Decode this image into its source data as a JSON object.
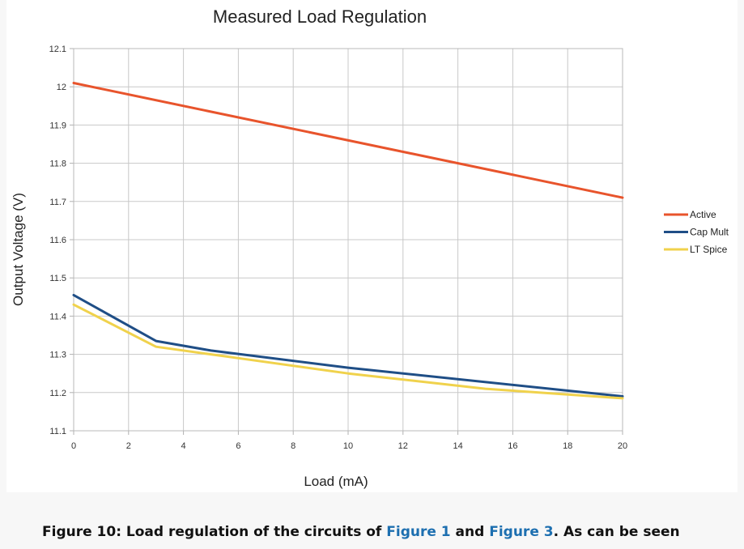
{
  "chart_data": {
    "type": "line",
    "title": "Measured Load Regulation",
    "xlabel": "Load (mA)",
    "ylabel": "Output Voltage (V)",
    "xlim": [
      0,
      20
    ],
    "ylim": [
      11.1,
      12.1
    ],
    "x_ticks": [
      "0",
      "2",
      "4",
      "6",
      "8",
      "10",
      "12",
      "14",
      "16",
      "18",
      "20"
    ],
    "y_ticks": [
      "12.1",
      "12",
      "11.9",
      "11.8",
      "11.7",
      "11.6",
      "11.5",
      "11.4",
      "11.3",
      "11.2",
      "11.1"
    ],
    "grid": true,
    "legend_position": "right",
    "series": [
      {
        "name": "Active",
        "color": "#e8542c",
        "x": [
          0,
          20
        ],
        "y": [
          12.01,
          11.71
        ]
      },
      {
        "name": "Cap Mult",
        "color": "#1f4e86",
        "x": [
          0,
          3,
          5,
          10,
          20
        ],
        "y": [
          11.455,
          11.335,
          11.31,
          11.265,
          11.19
        ]
      },
      {
        "name": "LT Spice",
        "color": "#f0d24c",
        "x": [
          0,
          3,
          6,
          10,
          15,
          20
        ],
        "y": [
          11.43,
          11.32,
          11.29,
          11.25,
          11.21,
          11.185
        ]
      }
    ]
  },
  "caption": {
    "prefix": "Figure 10: Load regulation of the circuits of ",
    "link1": "Figure 1",
    "middle": " and ",
    "link2": "Figure 3",
    "suffix": ". As can be seen"
  }
}
